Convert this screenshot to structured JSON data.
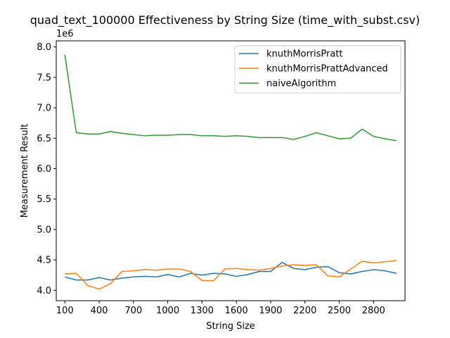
{
  "chart_data": {
    "type": "line",
    "title": "quad_text_100000 Effectiveness by String Size (time_with_subst.csv)",
    "xlabel": "String Size",
    "ylabel": "Measurement Result",
    "y_offset_label": "1e6",
    "xlim": [
      25,
      3075
    ],
    "ylim": [
      3.83,
      8.1
    ],
    "xticks": [
      100,
      400,
      700,
      1000,
      1300,
      1600,
      1900,
      2200,
      2500,
      2800
    ],
    "yticks": [
      4.0,
      4.5,
      5.0,
      5.5,
      6.0,
      6.5,
      7.0,
      7.5,
      8.0
    ],
    "ytick_labels": [
      "4.0",
      "4.5",
      "5.0",
      "5.5",
      "6.0",
      "6.5",
      "7.0",
      "7.5",
      "8.0"
    ],
    "grid": false,
    "legend_position": "top-right",
    "x": [
      100,
      200,
      300,
      400,
      500,
      600,
      700,
      800,
      900,
      1000,
      1100,
      1200,
      1300,
      1400,
      1500,
      1600,
      1700,
      1800,
      1900,
      2000,
      2100,
      2200,
      2300,
      2400,
      2500,
      2600,
      2700,
      2800,
      2900,
      3000
    ],
    "series": [
      {
        "name": "knuthMorrisPratt",
        "color": "#1f77b4",
        "values": [
          4.22,
          4.17,
          4.17,
          4.21,
          4.17,
          4.2,
          4.22,
          4.23,
          4.22,
          4.26,
          4.22,
          4.28,
          4.25,
          4.28,
          4.27,
          4.23,
          4.26,
          4.31,
          4.31,
          4.46,
          4.36,
          4.34,
          4.38,
          4.39,
          4.29,
          4.27,
          4.31,
          4.34,
          4.32,
          4.28
        ]
      },
      {
        "name": "knuthMorrisPrattAdvanced",
        "color": "#ff7f0e",
        "values": [
          4.27,
          4.28,
          4.08,
          4.02,
          4.11,
          4.31,
          4.32,
          4.34,
          4.33,
          4.35,
          4.35,
          4.31,
          4.16,
          4.16,
          4.35,
          4.36,
          4.34,
          4.33,
          4.36,
          4.4,
          4.42,
          4.41,
          4.42,
          4.24,
          4.22,
          4.35,
          4.48,
          4.45,
          4.47,
          4.49
        ]
      },
      {
        "name": "naiveAlgorithm",
        "color": "#2ca02c",
        "values": [
          7.87,
          6.59,
          6.57,
          6.57,
          6.61,
          6.58,
          6.56,
          6.54,
          6.55,
          6.55,
          6.56,
          6.56,
          6.54,
          6.54,
          6.53,
          6.54,
          6.53,
          6.51,
          6.51,
          6.51,
          6.48,
          6.53,
          6.59,
          6.54,
          6.49,
          6.5,
          6.65,
          6.53,
          6.49,
          6.46
        ]
      }
    ]
  }
}
